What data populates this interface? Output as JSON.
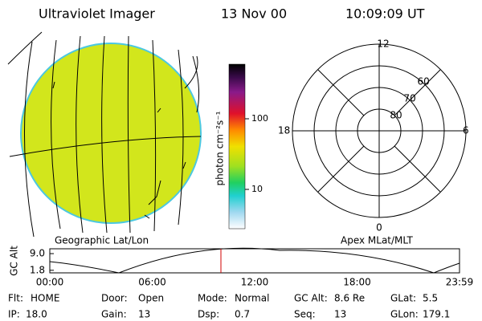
{
  "header": {
    "instrument": "Ultraviolet Imager",
    "date": "13 Nov 00",
    "time": "10:09:09 UT"
  },
  "colorbar": {
    "label": "photon cm⁻²s⁻¹",
    "log_scale": true,
    "ticks": [
      100,
      10
    ]
  },
  "polar": {
    "mlt_labels": {
      "top": "12",
      "left": "18",
      "right": "6",
      "bottom": "0"
    },
    "rings": [
      60,
      70,
      80
    ]
  },
  "map_labels": {
    "left": "Geographic Lat/Lon",
    "right": "Apex MLat/MLT"
  },
  "altitude_plot": {
    "ylabel": "GC Alt",
    "yticks": [
      {
        "value": 9,
        "label": "9.0"
      },
      1.8
    ],
    "xticks": [
      "00:00",
      "06:00",
      "12:00",
      "18:00",
      "23:59"
    ]
  },
  "status": [
    [
      {
        "label": "Flt:",
        "value": "HOME"
      },
      {
        "label": "Door:",
        "value": "Open"
      },
      {
        "label": "Mode:",
        "value": "Normal"
      },
      {
        "label": "GC Alt:",
        "value": "8.6 Re"
      },
      {
        "label": "GLat:",
        "value": "5.5"
      }
    ],
    [
      {
        "label": "IP:",
        "value": "18.0"
      },
      {
        "label": "Gain:",
        "value": "13"
      },
      {
        "label": "Dsp:",
        "value": "0.7"
      },
      {
        "label": "Seq:",
        "value": "13"
      },
      {
        "label": "GLon:",
        "value": "179.1"
      }
    ]
  ]
}
